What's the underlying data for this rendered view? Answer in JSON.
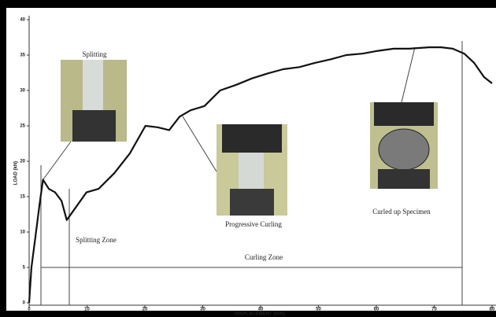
{
  "chart_data": {
    "type": "line",
    "x_label": "DISPLACEMENT (mm)",
    "y_label": "LOAD (kN)",
    "annotations": [
      "Splitting",
      "Splitting Zone",
      "Curling Zone",
      "Progressive Curling",
      "Curled up Specimen"
    ],
    "x": [
      0,
      0.4,
      1.1,
      1.8,
      2.4,
      3.4,
      4.5,
      5.6,
      6.5,
      7.9,
      9.9,
      12,
      14.7,
      17.4,
      20.1,
      22.2,
      24.2,
      26,
      27.9,
      30.3,
      33,
      35.8,
      38.5,
      41.2,
      43.9,
      46.7,
      49.4,
      52.1,
      54.8,
      57.6,
      60.3,
      63,
      65.7,
      69.1,
      71.2,
      73.2,
      75.2,
      76.9,
      78.6,
      80
    ],
    "series": [
      {
        "color": "#111111",
        "values": [
          0,
          5,
          9.4,
          13.9,
          17.4,
          16.1,
          15.6,
          14.4,
          11.7,
          13.3,
          15.6,
          16.1,
          18.3,
          21.1,
          25,
          24.8,
          24.4,
          26.3,
          27.2,
          27.8,
          30,
          30.8,
          31.7,
          32.4,
          33,
          33.3,
          33.9,
          34.4,
          35,
          35.2,
          35.6,
          35.9,
          35.9,
          36.1,
          36.1,
          35.9,
          35.2,
          33.9,
          31.9,
          31
        ]
      }
    ],
    "xlim": [
      0,
      80
    ],
    "xticks": [
      0,
      10,
      20,
      30,
      40,
      50,
      60,
      70,
      80
    ],
    "ylim": [
      0,
      40
    ],
    "yticks": [
      0,
      5,
      10,
      15,
      20,
      25,
      30,
      35,
      40
    ]
  }
}
